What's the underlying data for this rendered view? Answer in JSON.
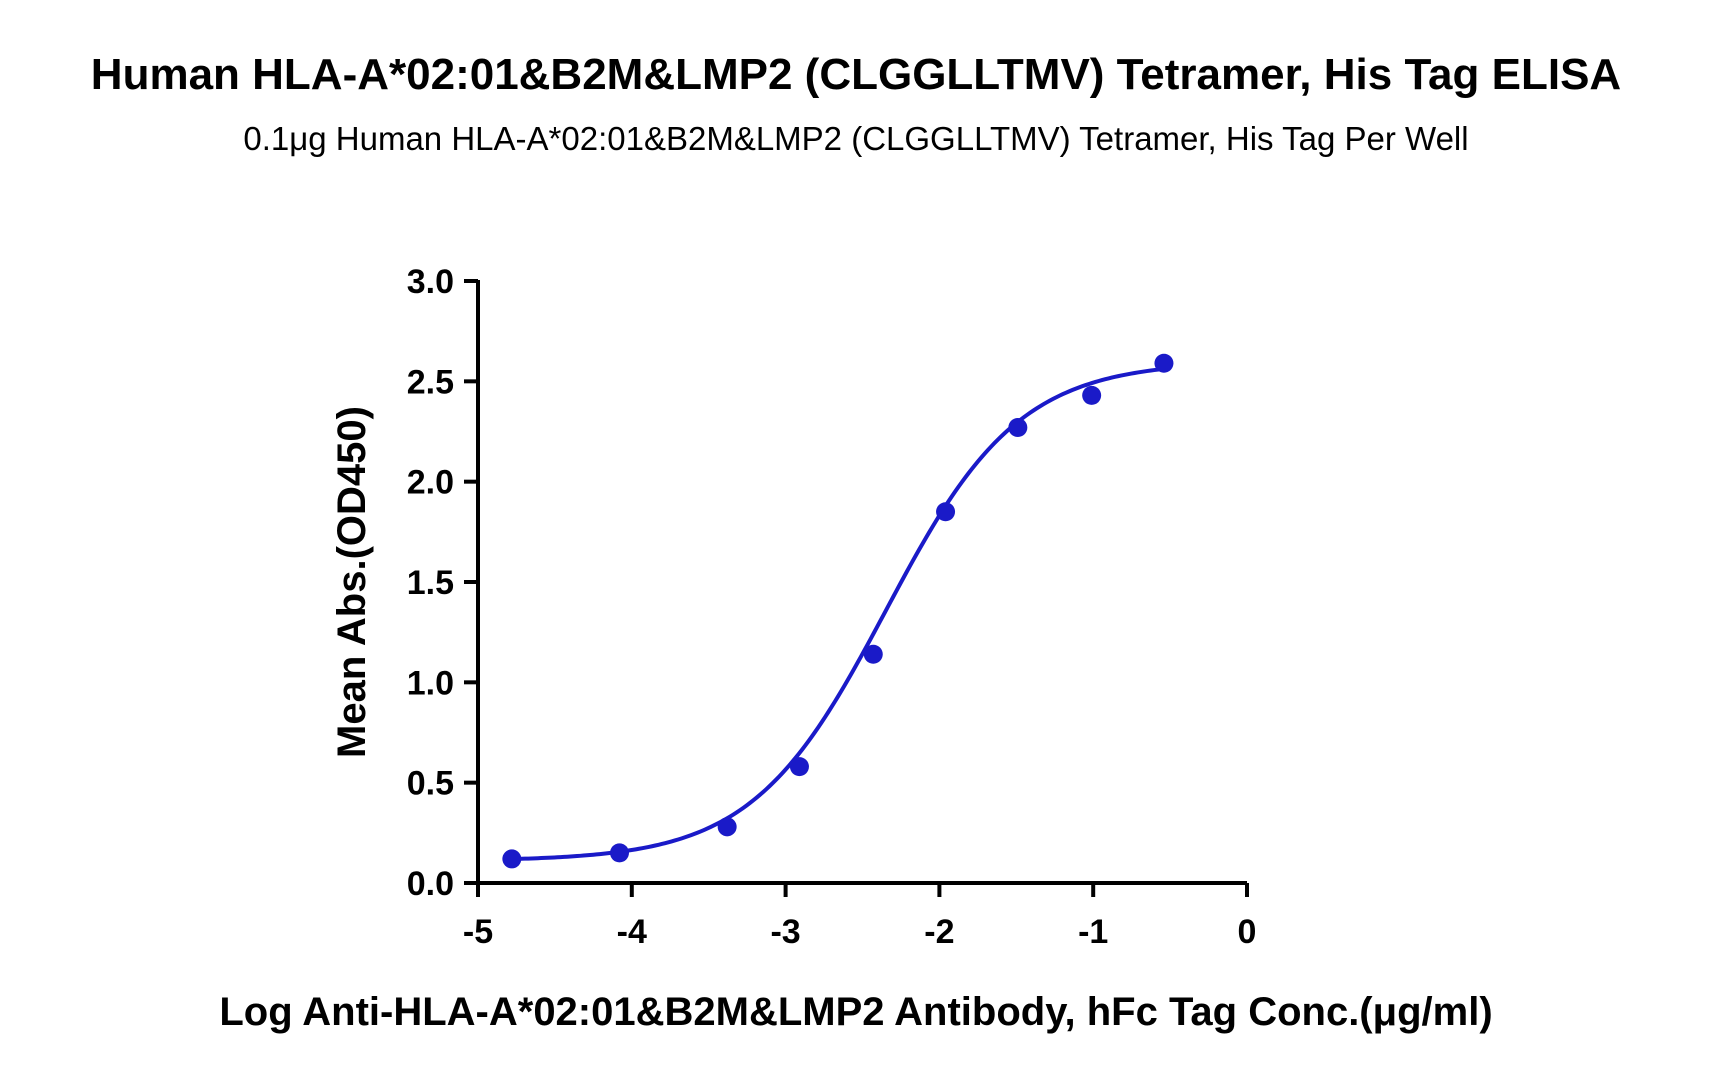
{
  "title": "Human HLA-A*02:01&B2M&LMP2 (CLGGLLTMV) Tetramer, His Tag ELISA",
  "subtitle": "0.1μg Human HLA-A*02:01&B2M&LMP2 (CLGGLLTMV) Tetramer, His Tag Per Well",
  "chart_data": {
    "type": "scatter",
    "title": "Human HLA-A*02:01&B2M&LMP2 (CLGGLLTMV) Tetramer, His Tag ELISA",
    "subtitle": "0.1μg Human HLA-A*02:01&B2M&LMP2 (CLGGLLTMV) Tetramer, His Tag Per Well",
    "xlabel": "Log Anti-HLA-A*02:01&B2M&LMP2 Antibody, hFc Tag Conc.(μg/ml)",
    "ylabel": "Mean Abs.(OD450)",
    "xlim": [
      -5,
      0
    ],
    "ylim": [
      0,
      3.0
    ],
    "xticks": [
      "-5",
      "-4",
      "-3",
      "-2",
      "-1",
      "0"
    ],
    "yticks": [
      "0.0",
      "0.5",
      "1.0",
      "1.5",
      "2.0",
      "2.5",
      "3.0"
    ],
    "grid": false,
    "color": "#1a1ac8",
    "series": [
      {
        "points": {
          "x": [
            -4.78,
            -4.08,
            -3.38,
            -2.91,
            -2.43,
            -1.96,
            -1.49,
            -1.01,
            -0.54
          ],
          "y": [
            0.12,
            0.15,
            0.28,
            0.58,
            1.14,
            1.85,
            2.27,
            2.43,
            2.59
          ]
        },
        "fit_curve": {
          "bottom": 0.11,
          "top": 2.6,
          "log_ec50": -2.35,
          "hill_slope": 1.0,
          "x_range": [
            -4.78,
            -0.54
          ]
        }
      }
    ]
  }
}
